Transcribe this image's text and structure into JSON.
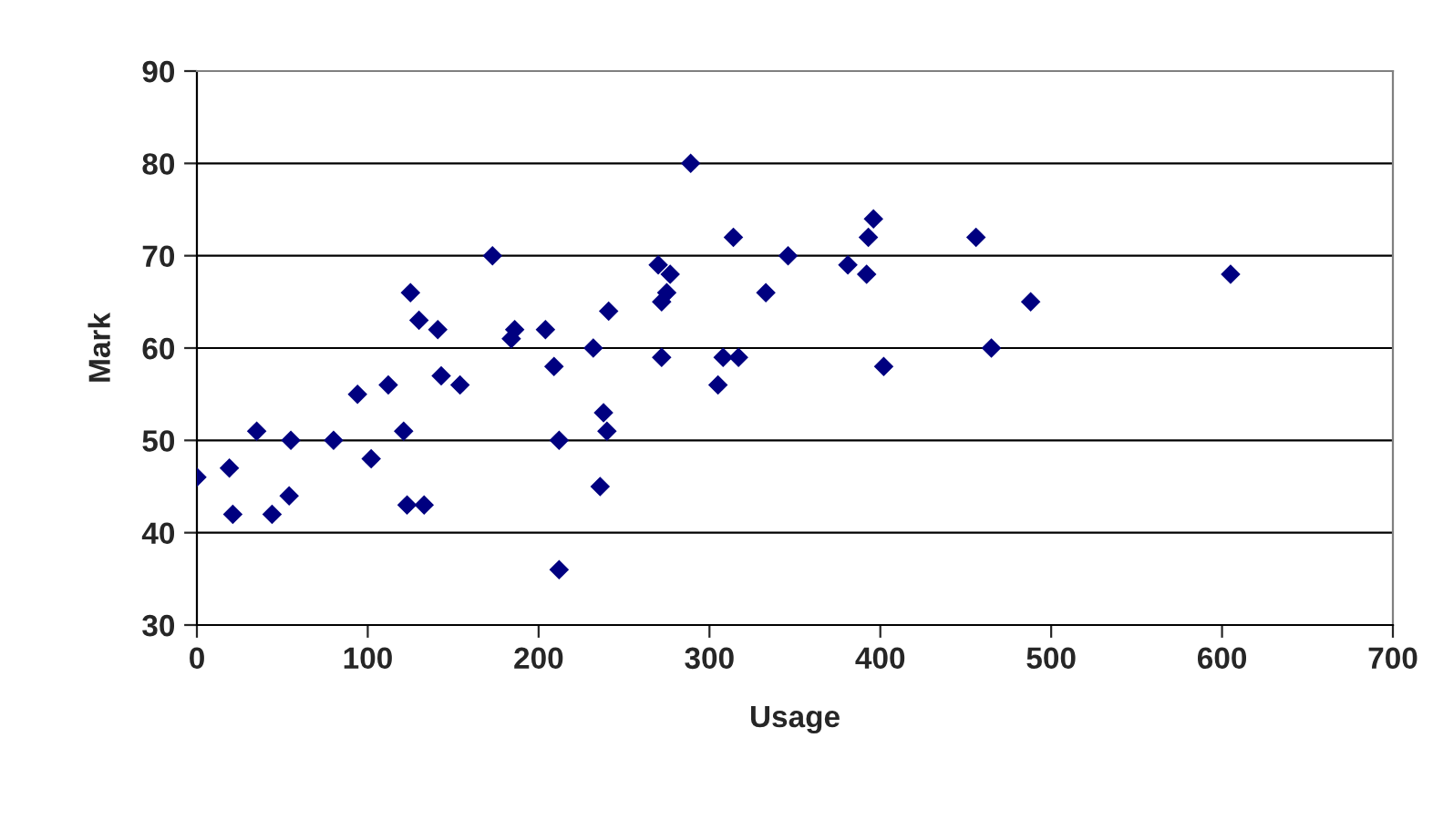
{
  "chart_data": {
    "type": "scatter",
    "xlabel": "Usage",
    "ylabel": "Mark",
    "x": [
      0,
      19,
      21,
      35,
      44,
      54,
      55,
      80,
      94,
      102,
      112,
      121,
      123,
      125,
      130,
      133,
      141,
      143,
      154,
      173,
      184,
      186,
      204,
      209,
      212,
      212,
      232,
      236,
      238,
      240,
      241,
      289,
      270,
      272,
      272,
      275,
      277,
      305,
      308,
      314,
      317,
      333,
      346,
      381,
      392,
      393,
      396,
      402,
      456,
      465,
      488,
      605
    ],
    "series": [
      {
        "color": "#000080",
        "values": [
          46,
          47,
          42,
          51,
          42,
          44,
          50,
          50,
          55,
          48,
          56,
          51,
          43,
          66,
          63,
          43,
          62,
          57,
          56,
          70,
          61,
          62,
          62,
          58,
          50,
          36,
          60,
          45,
          53,
          51,
          64,
          80,
          69,
          65,
          59,
          66,
          68,
          56,
          59,
          72,
          59,
          66,
          70,
          69,
          68,
          72,
          74,
          58,
          72,
          60,
          65,
          68
        ]
      }
    ],
    "xlim": [
      0,
      700
    ],
    "xticks": [
      0,
      100,
      200,
      300,
      400,
      500,
      600,
      700
    ],
    "ylim": [
      30,
      90
    ],
    "yticks": [
      30,
      40,
      50,
      60,
      70,
      80,
      90
    ],
    "grid": "y",
    "marker": "diamond"
  }
}
